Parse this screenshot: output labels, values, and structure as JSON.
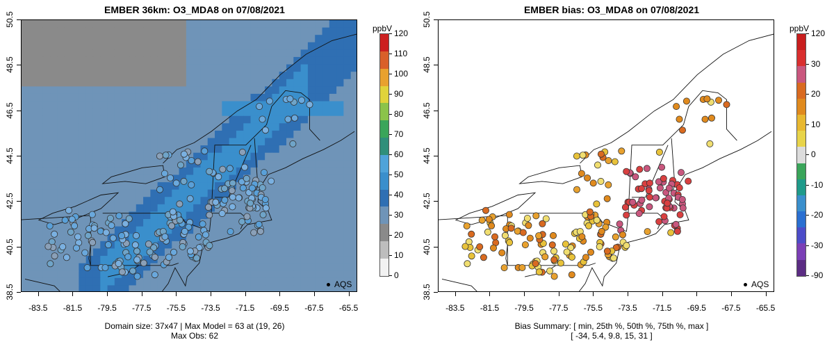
{
  "colors": {
    "left_scale": [
      "#f2f2f2",
      "#bdbdbd",
      "#8a8a8a",
      "#6f94b8",
      "#2f6fb3",
      "#3a8fcc",
      "#4fa3d9",
      "#2f8f7a",
      "#3aa55a",
      "#8bc34a",
      "#e0d33a",
      "#e8a12e",
      "#d9602a",
      "#cc1f1f"
    ],
    "right_scale": [
      "#5b2c83",
      "#7b3fb6",
      "#4c4cc8",
      "#2a6fd1",
      "#3a8fcc",
      "#1f9a8a",
      "#3aa55a",
      "#dcdcdc",
      "#e8d44a",
      "#e8b830",
      "#e08a1e",
      "#d96a20",
      "#c9577e",
      "#d92f2f",
      "#c81e1e"
    ]
  },
  "left": {
    "title": "EMBER 36km: O3_MDA8 on 07/08/2021",
    "unit": "ppbV",
    "colorbar_labels": [
      "120",
      "110",
      "100",
      "90",
      "80",
      "70",
      "60",
      "50",
      "40",
      "30",
      "20",
      "10",
      "0"
    ],
    "legend_label": "AQS",
    "footer_line1": "Domain size: 37x47 | Max Model = 63 at (19, 26)",
    "footer_line2": "Max Obs: 62"
  },
  "right": {
    "title": "EMBER bias: O3_MDA8 on 07/08/2021",
    "unit": "ppbV",
    "colorbar_labels": [
      "120",
      "30",
      "20",
      "10",
      "0",
      "-10",
      "-20",
      "-30",
      "-90"
    ],
    "legend_label": "AQS",
    "footer_line1": "Bias Summary: [ min, 25th %, 50th %, 75th %, max ]",
    "footer_line2": "[ -34,   5.4,   9.8,   15,   31 ]"
  },
  "axes": {
    "x_ticks": [
      "-83.5",
      "-81.5",
      "-79.5",
      "-77.5",
      "-75.5",
      "-73.5",
      "-71.5",
      "-69.5",
      "-67.5",
      "-65.5"
    ],
    "y_ticks": [
      "50.5",
      "48.5",
      "46.5",
      "44.5",
      "42.5",
      "40.5",
      "38.5"
    ]
  },
  "chart_data": {
    "type": "map",
    "panels": [
      {
        "title": "EMBER 36km: O3_MDA8 on 07/08/2021",
        "variable": "O3_MDA8",
        "units": "ppbV",
        "color_range": [
          0,
          120
        ],
        "x_range": [
          -84.5,
          -65
        ],
        "y_range": [
          38.5,
          50.5
        ],
        "model_max": 63,
        "model_max_cell": [
          19,
          26
        ],
        "obs_max": 62,
        "domain_size": "37x47"
      },
      {
        "title": "EMBER bias: O3_MDA8 on 07/08/2021",
        "variable": "O3_MDA8 bias",
        "units": "ppbV",
        "color_range": [
          -90,
          120
        ],
        "x_range": [
          -84.5,
          -65
        ],
        "y_range": [
          38.5,
          50.5
        ],
        "bias_summary": {
          "min": -34,
          "p25": 5.4,
          "p50": 9.8,
          "p75": 15,
          "max": 31
        }
      }
    ]
  }
}
